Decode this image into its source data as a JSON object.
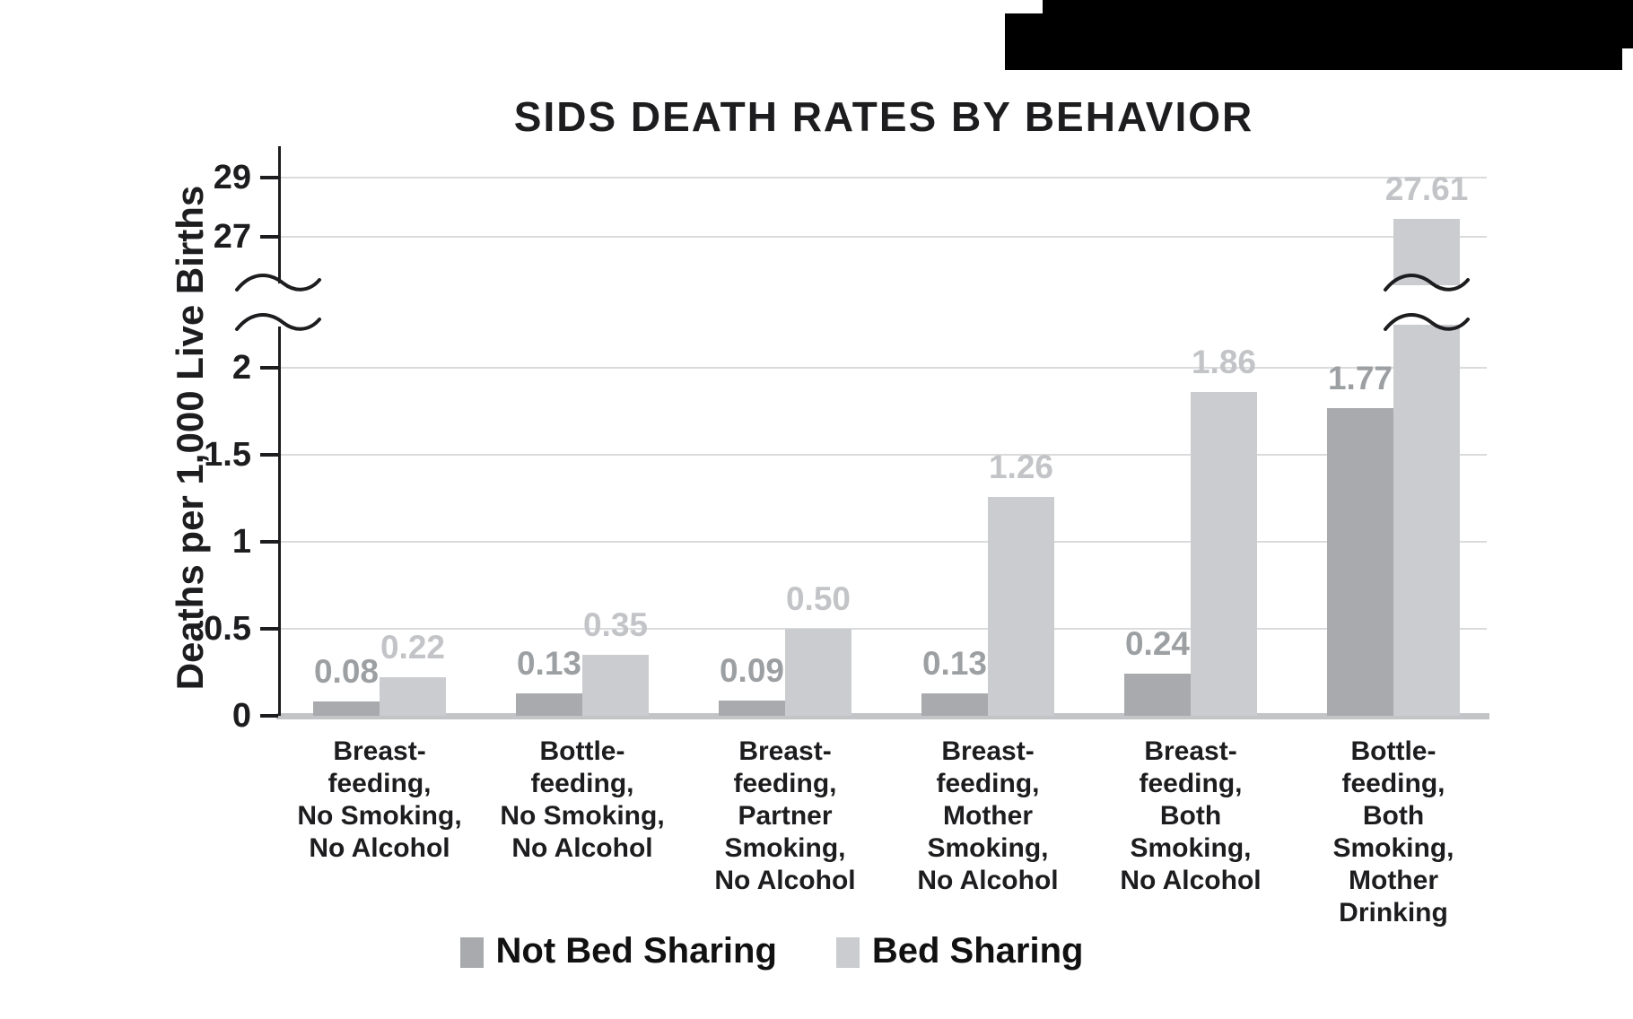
{
  "banner": {
    "description": "cropped-black-banner"
  },
  "chart_data": {
    "type": "bar",
    "title": "SIDS DEATH RATES BY BEHAVIOR",
    "xlabel": "",
    "ylabel": "Deaths per 1,000 Live Births",
    "grid": true,
    "legend_position": "bottom",
    "axis_break": {
      "between": [
        2,
        27
      ],
      "style": "double-squiggle"
    },
    "categories": [
      "Breast-\nfeeding,\nNo Smoking,\nNo Alcohol",
      "Bottle-\nfeeding,\nNo Smoking,\nNo Alcohol",
      "Breast-\nfeeding,\nPartner\nSmoking,\nNo Alcohol",
      "Breast-\nfeeding,\nMother\nSmoking,\nNo Alcohol",
      "Breast-\nfeeding,\nBoth\nSmoking,\nNo Alcohol",
      "Bottle-\nfeeding,\nBoth\nSmoking,\nMother\nDrinking"
    ],
    "series": [
      {
        "name": "Not Bed Sharing",
        "values": [
          0.08,
          0.13,
          0.09,
          0.13,
          0.24,
          1.77
        ],
        "labels": [
          "0.08",
          "0.13",
          "0.09",
          "0.13",
          "0.24",
          "1.77"
        ],
        "color": "#a8aaad",
        "label_color": "#9da0a3"
      },
      {
        "name": "Bed Sharing",
        "values": [
          0.22,
          0.35,
          0.5,
          1.26,
          1.86,
          27.61
        ],
        "labels": [
          "0.22",
          "0.35",
          "0.50",
          "1.26",
          "1.86",
          "27.61"
        ],
        "color": "#cacccf",
        "label_color": "#c2c4c7"
      }
    ],
    "y_ticks": [
      {
        "label": "0",
        "value": 0
      },
      {
        "label": "0.5",
        "value": 0.5
      },
      {
        "label": "1",
        "value": 1
      },
      {
        "label": "1.5",
        "value": 1.5
      },
      {
        "label": "2",
        "value": 2
      },
      {
        "label": "27",
        "value": 27
      },
      {
        "label": "29",
        "value": 29
      }
    ],
    "colors": {
      "gridline": "#dadbdc",
      "baseline": "#c2c4c6",
      "axis": "#1d1d1f",
      "text": "#1d1d1f"
    }
  }
}
